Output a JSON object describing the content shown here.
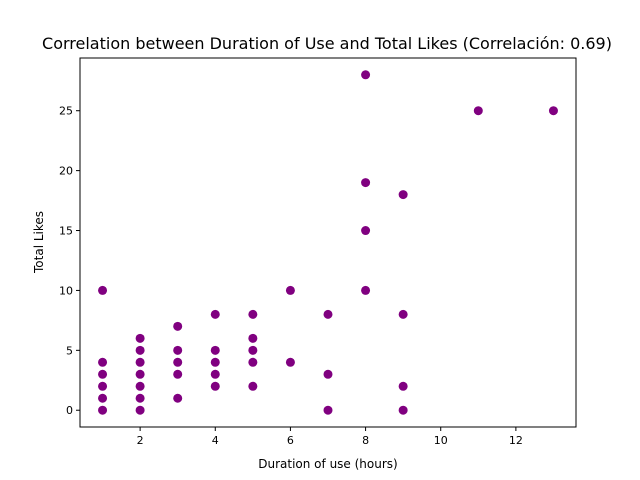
{
  "chart_data": {
    "type": "scatter",
    "title": "Correlation between Duration of Use and Total Likes (Correlación: 0.69)",
    "xlabel": "Duration of use (hours)",
    "ylabel": "Total Likes",
    "xlim": [
      0.4,
      13.6
    ],
    "ylim": [
      -1.4,
      29.4
    ],
    "xticks": [
      2,
      4,
      6,
      8,
      10,
      12
    ],
    "yticks": [
      0,
      5,
      10,
      15,
      20,
      25
    ],
    "grid": false,
    "marker_color": "#800080",
    "points": [
      {
        "x": 1,
        "y": 10
      },
      {
        "x": 1,
        "y": 4
      },
      {
        "x": 1,
        "y": 3
      },
      {
        "x": 1,
        "y": 2
      },
      {
        "x": 1,
        "y": 1
      },
      {
        "x": 1,
        "y": 0
      },
      {
        "x": 2,
        "y": 6
      },
      {
        "x": 2,
        "y": 5
      },
      {
        "x": 2,
        "y": 4
      },
      {
        "x": 2,
        "y": 3
      },
      {
        "x": 2,
        "y": 2
      },
      {
        "x": 2,
        "y": 1
      },
      {
        "x": 2,
        "y": 0
      },
      {
        "x": 3,
        "y": 7
      },
      {
        "x": 3,
        "y": 5
      },
      {
        "x": 3,
        "y": 4
      },
      {
        "x": 3,
        "y": 3
      },
      {
        "x": 3,
        "y": 1
      },
      {
        "x": 4,
        "y": 8
      },
      {
        "x": 4,
        "y": 5
      },
      {
        "x": 4,
        "y": 4
      },
      {
        "x": 4,
        "y": 3
      },
      {
        "x": 4,
        "y": 2
      },
      {
        "x": 5,
        "y": 8
      },
      {
        "x": 5,
        "y": 6
      },
      {
        "x": 5,
        "y": 5
      },
      {
        "x": 5,
        "y": 4
      },
      {
        "x": 5,
        "y": 2
      },
      {
        "x": 6,
        "y": 10
      },
      {
        "x": 6,
        "y": 4
      },
      {
        "x": 7,
        "y": 8
      },
      {
        "x": 7,
        "y": 3
      },
      {
        "x": 7,
        "y": 0
      },
      {
        "x": 8,
        "y": 28
      },
      {
        "x": 8,
        "y": 19
      },
      {
        "x": 8,
        "y": 15
      },
      {
        "x": 8,
        "y": 10
      },
      {
        "x": 9,
        "y": 18
      },
      {
        "x": 9,
        "y": 8
      },
      {
        "x": 9,
        "y": 2
      },
      {
        "x": 9,
        "y": 0
      },
      {
        "x": 11,
        "y": 25
      },
      {
        "x": 13,
        "y": 25
      }
    ]
  }
}
